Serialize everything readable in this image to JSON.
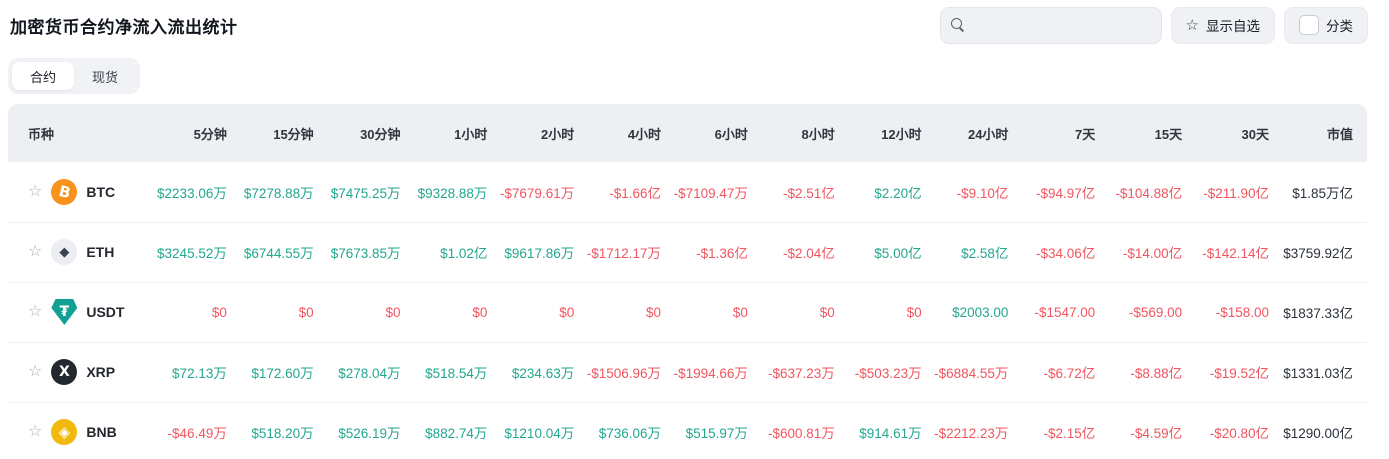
{
  "page": {
    "title": "加密货币合约净流入流出统计"
  },
  "toolbar": {
    "search": {
      "placeholder": "",
      "value": "",
      "icon": "magnifier"
    },
    "show_favorites_label": "显示自选",
    "category_label": "分类",
    "category_checked": false
  },
  "tabs": [
    {
      "label": "合约",
      "active": true
    },
    {
      "label": "现货",
      "active": false
    }
  ],
  "colors": {
    "up": "#22a78e",
    "down": "#f2555f",
    "cap": "#2b313b",
    "btc_bg": "#f7931a",
    "eth_bg": "#eceef2",
    "eth_fg": "#3b4252",
    "usdt_bg": "#12a095",
    "xrp_bg": "#23292f",
    "bnb_bg": "#f0b90b"
  },
  "table": {
    "headers": [
      "币种",
      "5分钟",
      "15分钟",
      "30分钟",
      "1小时",
      "2小时",
      "4小时",
      "6小时",
      "8小时",
      "12小时",
      "24小时",
      "7天",
      "15天",
      "30天",
      "市值"
    ],
    "rows": [
      {
        "symbol": "BTC",
        "icon": {
          "name": "btc-icon",
          "glyph": "B",
          "bg": "#f7931a",
          "fg": "#ffffff",
          "shape": "circle",
          "tilt": true,
          "size": "15px"
        },
        "cells": [
          {
            "v": "$2233.06万",
            "t": "up"
          },
          {
            "v": "$7278.88万",
            "t": "up"
          },
          {
            "v": "$7475.25万",
            "t": "up"
          },
          {
            "v": "$9328.88万",
            "t": "up"
          },
          {
            "v": "-$7679.61万",
            "t": "down"
          },
          {
            "v": "-$1.66亿",
            "t": "down"
          },
          {
            "v": "-$7109.47万",
            "t": "down"
          },
          {
            "v": "-$2.51亿",
            "t": "down"
          },
          {
            "v": "$2.20亿",
            "t": "up"
          },
          {
            "v": "-$9.10亿",
            "t": "down"
          },
          {
            "v": "-$94.97亿",
            "t": "down"
          },
          {
            "v": "-$104.88亿",
            "t": "down"
          },
          {
            "v": "-$211.90亿",
            "t": "down"
          },
          {
            "v": "$1.85万亿",
            "t": "cap"
          }
        ]
      },
      {
        "symbol": "ETH",
        "icon": {
          "name": "eth-icon",
          "glyph": "◆",
          "bg": "#eceef2",
          "fg": "#3b4252",
          "shape": "circle",
          "tilt": false,
          "size": "13px"
        },
        "cells": [
          {
            "v": "$3245.52万",
            "t": "up"
          },
          {
            "v": "$6744.55万",
            "t": "up"
          },
          {
            "v": "$7673.85万",
            "t": "up"
          },
          {
            "v": "$1.02亿",
            "t": "up"
          },
          {
            "v": "$9617.86万",
            "t": "up"
          },
          {
            "v": "-$1712.17万",
            "t": "down"
          },
          {
            "v": "-$1.36亿",
            "t": "down"
          },
          {
            "v": "-$2.04亿",
            "t": "down"
          },
          {
            "v": "$5.00亿",
            "t": "up"
          },
          {
            "v": "$2.58亿",
            "t": "up"
          },
          {
            "v": "-$34.06亿",
            "t": "down"
          },
          {
            "v": "-$14.00亿",
            "t": "down"
          },
          {
            "v": "-$142.14亿",
            "t": "down"
          },
          {
            "v": "$3759.92亿",
            "t": "cap"
          }
        ]
      },
      {
        "symbol": "USDT",
        "icon": {
          "name": "usdt-icon",
          "glyph": "₮",
          "bg": "#12a095",
          "fg": "#ffffff",
          "shape": "shield",
          "tilt": false,
          "size": "14px"
        },
        "cells": [
          {
            "v": "$0",
            "t": "down"
          },
          {
            "v": "$0",
            "t": "down"
          },
          {
            "v": "$0",
            "t": "down"
          },
          {
            "v": "$0",
            "t": "down"
          },
          {
            "v": "$0",
            "t": "down"
          },
          {
            "v": "$0",
            "t": "down"
          },
          {
            "v": "$0",
            "t": "down"
          },
          {
            "v": "$0",
            "t": "down"
          },
          {
            "v": "$0",
            "t": "down"
          },
          {
            "v": "$2003.00",
            "t": "up"
          },
          {
            "v": "-$1547.00",
            "t": "down"
          },
          {
            "v": "-$569.00",
            "t": "down"
          },
          {
            "v": "-$158.00",
            "t": "down"
          },
          {
            "v": "$1837.33亿",
            "t": "cap"
          }
        ]
      },
      {
        "symbol": "XRP",
        "icon": {
          "name": "xrp-icon",
          "glyph": "X",
          "bg": "#23292f",
          "fg": "#ffffff",
          "shape": "circle",
          "tilt": false,
          "size": "14px"
        },
        "cells": [
          {
            "v": "$72.13万",
            "t": "up"
          },
          {
            "v": "$172.60万",
            "t": "up"
          },
          {
            "v": "$278.04万",
            "t": "up"
          },
          {
            "v": "$518.54万",
            "t": "up"
          },
          {
            "v": "$234.63万",
            "t": "up"
          },
          {
            "v": "-$1506.96万",
            "t": "down"
          },
          {
            "v": "-$1994.66万",
            "t": "down"
          },
          {
            "v": "-$637.23万",
            "t": "down"
          },
          {
            "v": "-$503.23万",
            "t": "down"
          },
          {
            "v": "-$6884.55万",
            "t": "down"
          },
          {
            "v": "-$6.72亿",
            "t": "down"
          },
          {
            "v": "-$8.88亿",
            "t": "down"
          },
          {
            "v": "-$19.52亿",
            "t": "down"
          },
          {
            "v": "$1331.03亿",
            "t": "cap"
          }
        ]
      },
      {
        "symbol": "BNB",
        "icon": {
          "name": "bnb-icon",
          "glyph": "◈",
          "bg": "#f0b90b",
          "fg": "#ffffff",
          "shape": "circle",
          "tilt": false,
          "size": "15px"
        },
        "cells": [
          {
            "v": "-$46.49万",
            "t": "down"
          },
          {
            "v": "$518.20万",
            "t": "up"
          },
          {
            "v": "$526.19万",
            "t": "up"
          },
          {
            "v": "$882.74万",
            "t": "up"
          },
          {
            "v": "$1210.04万",
            "t": "up"
          },
          {
            "v": "$736.06万",
            "t": "up"
          },
          {
            "v": "$515.97万",
            "t": "up"
          },
          {
            "v": "-$600.81万",
            "t": "down"
          },
          {
            "v": "$914.61万",
            "t": "up"
          },
          {
            "v": "-$2212.23万",
            "t": "down"
          },
          {
            "v": "-$2.15亿",
            "t": "down"
          },
          {
            "v": "-$4.59亿",
            "t": "down"
          },
          {
            "v": "-$20.80亿",
            "t": "down"
          },
          {
            "v": "$1290.00亿",
            "t": "cap"
          }
        ]
      }
    ]
  }
}
